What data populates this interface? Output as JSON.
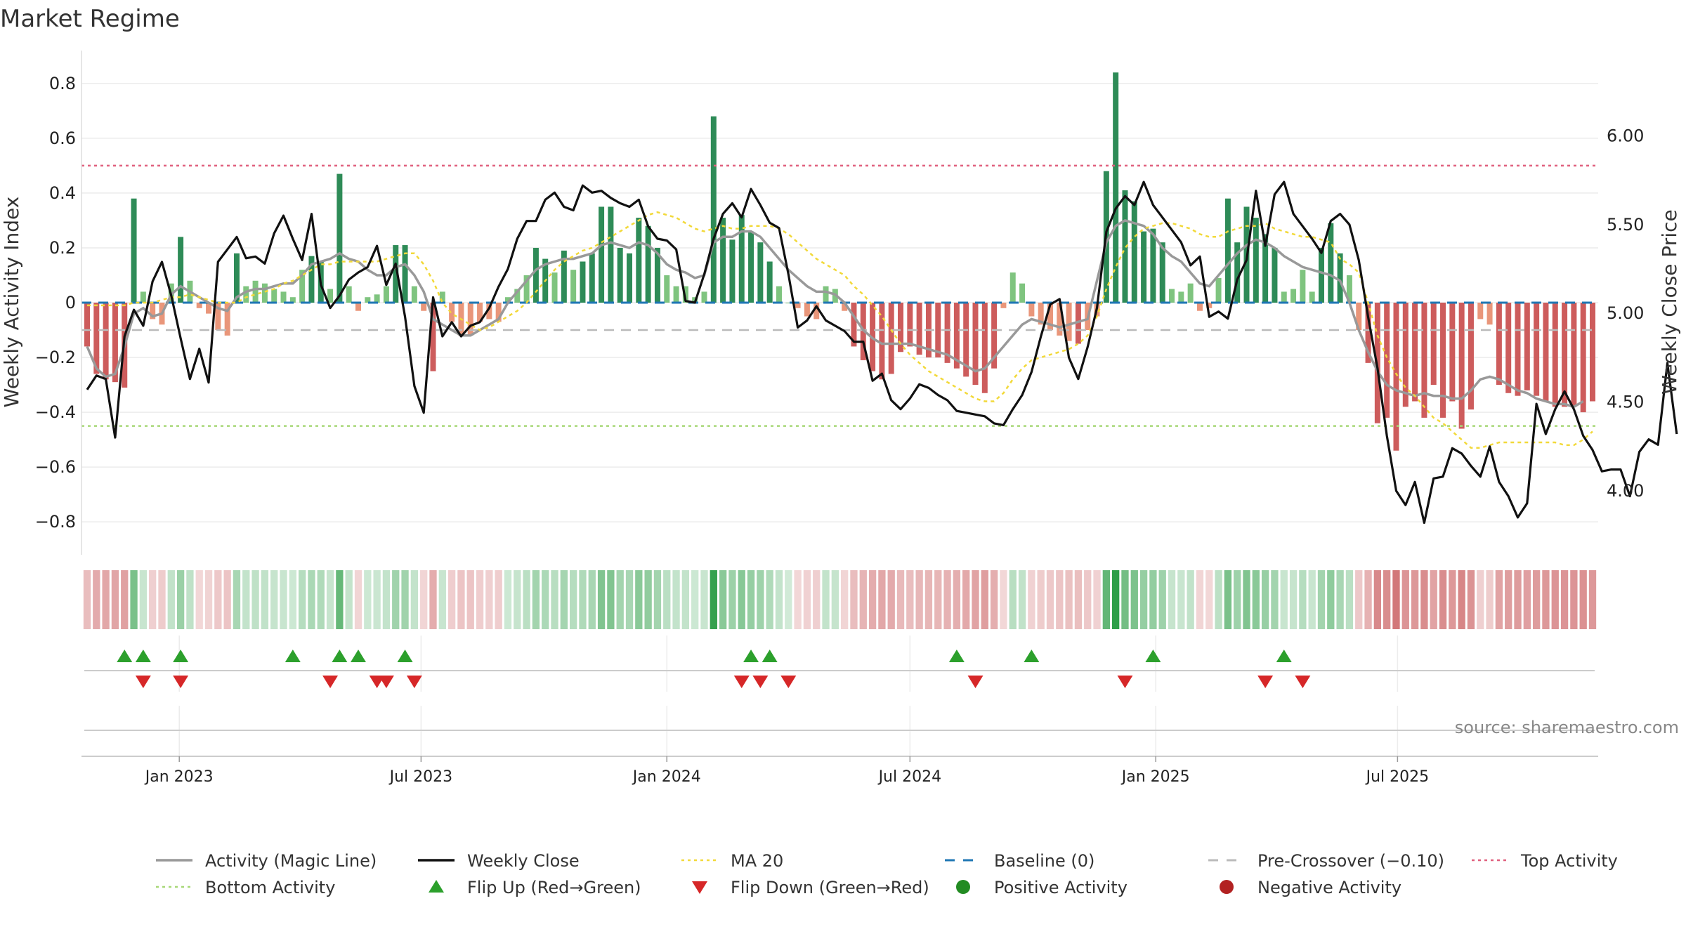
{
  "title": "Market Regime",
  "source": "source: sharemaestro.com",
  "chart_data": {
    "type": "bar",
    "x_start": "2022-10-24",
    "x_step_days": 7,
    "x_tick_labels": [
      "Jan 2023",
      "Jul 2023",
      "Jan 2024",
      "Jul 2024",
      "Jan 2025",
      "Jul 2025"
    ],
    "x_tick_dates": [
      "2023-01-01",
      "2023-07-01",
      "2024-01-01",
      "2024-07-01",
      "2025-01-01",
      "2025-07-01"
    ],
    "left_axis": {
      "label": "Weekly Activity Index",
      "ylim": [
        -0.92,
        0.92
      ],
      "ticks": [
        0.8,
        0.6,
        0.4,
        0.2,
        0,
        -0.2,
        -0.4,
        -0.6,
        -0.8
      ],
      "tick_labels": [
        "0.8",
        "0.6",
        "0.4",
        "0.2",
        "0",
        "−0.2",
        "−0.4",
        "−0.6",
        "−0.8"
      ]
    },
    "right_axis": {
      "label": "Weekly Close Price",
      "ylim": [
        3.64,
        6.48
      ],
      "ticks": [
        6.0,
        5.5,
        5.0,
        4.5,
        4.0
      ],
      "tick_labels": [
        "6.00",
        "5.50",
        "5.00",
        "4.50",
        "4.00"
      ]
    },
    "activity": [
      -0.16,
      -0.26,
      -0.28,
      -0.29,
      -0.31,
      0.38,
      0.04,
      -0.06,
      -0.08,
      0.07,
      0.24,
      0.08,
      -0.02,
      -0.04,
      -0.1,
      -0.12,
      0.18,
      0.06,
      0.08,
      0.07,
      0.05,
      0.04,
      0.02,
      0.12,
      0.17,
      0.15,
      0.05,
      0.47,
      0.06,
      -0.03,
      0.02,
      0.03,
      0.06,
      0.21,
      0.21,
      0.06,
      -0.03,
      -0.25,
      0.04,
      -0.07,
      -0.12,
      -0.12,
      -0.07,
      -0.06,
      -0.07,
      0.02,
      0.05,
      0.1,
      0.2,
      0.16,
      0.11,
      0.19,
      0.12,
      0.15,
      0.18,
      0.35,
      0.35,
      0.2,
      0.18,
      0.31,
      0.28,
      0.2,
      0.1,
      0.06,
      0.06,
      0.02,
      0.04,
      0.68,
      0.31,
      0.23,
      0.32,
      0.26,
      0.22,
      0.15,
      0.06,
      0.0,
      -0.02,
      -0.05,
      -0.06,
      0.06,
      0.05,
      -0.03,
      -0.16,
      -0.21,
      -0.25,
      -0.28,
      -0.26,
      -0.18,
      -0.16,
      -0.19,
      -0.2,
      -0.2,
      -0.22,
      -0.24,
      -0.27,
      -0.3,
      -0.33,
      -0.24,
      -0.02,
      0.11,
      0.07,
      -0.05,
      -0.08,
      -0.1,
      -0.12,
      -0.14,
      -0.15,
      -0.1,
      -0.05,
      0.48,
      0.84,
      0.41,
      0.37,
      0.26,
      0.27,
      0.22,
      0.05,
      0.04,
      0.07,
      -0.03,
      -0.02,
      0.09,
      0.38,
      0.22,
      0.35,
      0.31,
      0.25,
      0.2,
      0.04,
      0.05,
      0.12,
      0.04,
      0.2,
      0.29,
      0.18,
      0.1,
      -0.1,
      -0.22,
      -0.44,
      -0.42,
      -0.54,
      -0.38,
      -0.36,
      -0.42,
      -0.3,
      -0.42,
      -0.36,
      -0.46,
      -0.39,
      -0.06,
      -0.08,
      -0.3,
      -0.33,
      -0.34,
      -0.32,
      -0.34,
      -0.36,
      -0.38,
      -0.38,
      -0.38,
      -0.4,
      -0.36
    ],
    "magic_line": [
      -0.16,
      -0.24,
      -0.27,
      -0.26,
      -0.16,
      -0.04,
      -0.02,
      -0.05,
      -0.04,
      0.03,
      0.06,
      0.04,
      0.02,
      0.0,
      -0.02,
      -0.03,
      0.02,
      0.04,
      0.05,
      0.05,
      0.06,
      0.07,
      0.07,
      0.1,
      0.14,
      0.15,
      0.16,
      0.18,
      0.16,
      0.15,
      0.12,
      0.1,
      0.1,
      0.13,
      0.14,
      0.1,
      0.04,
      -0.06,
      -0.08,
      -0.1,
      -0.12,
      -0.12,
      -0.1,
      -0.08,
      -0.06,
      0.0,
      0.04,
      0.08,
      0.12,
      0.14,
      0.15,
      0.16,
      0.16,
      0.17,
      0.18,
      0.21,
      0.22,
      0.21,
      0.2,
      0.22,
      0.21,
      0.18,
      0.14,
      0.12,
      0.11,
      0.09,
      0.1,
      0.22,
      0.24,
      0.24,
      0.26,
      0.26,
      0.24,
      0.2,
      0.16,
      0.12,
      0.09,
      0.06,
      0.04,
      0.04,
      0.03,
      0.0,
      -0.05,
      -0.1,
      -0.13,
      -0.15,
      -0.15,
      -0.15,
      -0.15,
      -0.16,
      -0.17,
      -0.18,
      -0.19,
      -0.21,
      -0.23,
      -0.25,
      -0.24,
      -0.2,
      -0.16,
      -0.12,
      -0.08,
      -0.06,
      -0.07,
      -0.08,
      -0.09,
      -0.08,
      -0.07,
      -0.06,
      0.08,
      0.22,
      0.28,
      0.3,
      0.29,
      0.28,
      0.25,
      0.2,
      0.17,
      0.15,
      0.11,
      0.07,
      0.06,
      0.1,
      0.14,
      0.18,
      0.21,
      0.23,
      0.22,
      0.2,
      0.17,
      0.15,
      0.13,
      0.12,
      0.11,
      0.1,
      0.08,
      0.0,
      -0.1,
      -0.18,
      -0.25,
      -0.3,
      -0.32,
      -0.33,
      -0.34,
      -0.33,
      -0.34,
      -0.34,
      -0.35,
      -0.35,
      -0.32,
      -0.28,
      -0.27,
      -0.28,
      -0.3,
      -0.32,
      -0.33,
      -0.35,
      -0.36,
      -0.37,
      -0.37,
      -0.38,
      -0.36
    ],
    "ma20": [
      -0.01,
      -0.01,
      -0.01,
      -0.01,
      -0.01,
      0.0,
      0.0,
      0.0,
      0.01,
      0.02,
      0.02,
      0.03,
      0.02,
      0.01,
      0.0,
      0.0,
      0.0,
      0.02,
      0.03,
      0.04,
      0.05,
      0.07,
      0.08,
      0.1,
      0.12,
      0.14,
      0.14,
      0.15,
      0.15,
      0.15,
      0.15,
      0.15,
      0.16,
      0.17,
      0.18,
      0.18,
      0.14,
      0.08,
      0.0,
      -0.04,
      -0.06,
      -0.08,
      -0.1,
      -0.09,
      -0.07,
      -0.05,
      -0.03,
      0.0,
      0.04,
      0.08,
      0.12,
      0.15,
      0.17,
      0.19,
      0.2,
      0.22,
      0.24,
      0.26,
      0.28,
      0.3,
      0.32,
      0.33,
      0.32,
      0.31,
      0.29,
      0.27,
      0.26,
      0.27,
      0.28,
      0.27,
      0.27,
      0.28,
      0.28,
      0.28,
      0.27,
      0.25,
      0.22,
      0.19,
      0.16,
      0.14,
      0.12,
      0.1,
      0.06,
      0.03,
      -0.01,
      -0.05,
      -0.1,
      -0.15,
      -0.19,
      -0.22,
      -0.25,
      -0.27,
      -0.29,
      -0.31,
      -0.33,
      -0.35,
      -0.36,
      -0.36,
      -0.33,
      -0.28,
      -0.24,
      -0.21,
      -0.2,
      -0.19,
      -0.18,
      -0.17,
      -0.15,
      -0.12,
      -0.05,
      0.05,
      0.13,
      0.2,
      0.24,
      0.27,
      0.28,
      0.29,
      0.29,
      0.28,
      0.27,
      0.25,
      0.24,
      0.24,
      0.26,
      0.27,
      0.28,
      0.28,
      0.29,
      0.27,
      0.26,
      0.25,
      0.24,
      0.24,
      0.23,
      0.22,
      0.16,
      0.14,
      0.11,
      0.0,
      -0.12,
      -0.2,
      -0.26,
      -0.31,
      -0.34,
      -0.38,
      -0.42,
      -0.44,
      -0.47,
      -0.5,
      -0.53,
      -0.53,
      -0.52,
      -0.51,
      -0.51,
      -0.51,
      -0.51,
      -0.51,
      -0.51,
      -0.51,
      -0.52,
      -0.52,
      -0.5,
      -0.47
    ],
    "weekly_close": [
      4.57,
      4.65,
      4.63,
      4.3,
      4.87,
      5.02,
      4.93,
      5.18,
      5.29,
      5.1,
      4.86,
      4.63,
      4.8,
      4.61,
      5.29,
      5.36,
      5.43,
      5.31,
      5.32,
      5.28,
      5.45,
      5.55,
      5.42,
      5.3,
      5.56,
      5.16,
      5.03,
      5.1,
      5.19,
      5.23,
      5.26,
      5.38,
      5.16,
      5.28,
      4.98,
      4.59,
      4.44,
      5.09,
      4.87,
      4.95,
      4.87,
      4.93,
      4.95,
      5.03,
      5.15,
      5.25,
      5.42,
      5.52,
      5.52,
      5.64,
      5.68,
      5.6,
      5.58,
      5.72,
      5.68,
      5.69,
      5.65,
      5.62,
      5.6,
      5.64,
      5.49,
      5.42,
      5.41,
      5.36,
      5.07,
      5.06,
      5.22,
      5.42,
      5.56,
      5.62,
      5.54,
      5.7,
      5.61,
      5.51,
      5.48,
      5.22,
      4.92,
      4.96,
      5.04,
      4.96,
      4.93,
      4.9,
      4.84,
      4.84,
      4.62,
      4.66,
      4.51,
      4.46,
      4.52,
      4.6,
      4.58,
      4.54,
      4.51,
      4.45,
      4.44,
      4.43,
      4.42,
      4.38,
      4.37,
      4.46,
      4.54,
      4.67,
      4.87,
      5.05,
      5.08,
      4.75,
      4.63,
      4.81,
      5.03,
      5.46,
      5.59,
      5.66,
      5.61,
      5.74,
      5.61,
      5.54,
      5.47,
      5.4,
      5.27,
      5.32,
      4.98,
      5.01,
      4.97,
      5.19,
      5.3,
      5.69,
      5.38,
      5.67,
      5.74,
      5.56,
      5.49,
      5.42,
      5.34,
      5.52,
      5.56,
      5.5,
      5.3,
      4.98,
      4.69,
      4.31,
      4.0,
      3.92,
      4.05,
      3.82,
      4.07,
      4.08,
      4.24,
      4.21,
      4.14,
      4.08,
      4.25,
      4.05,
      3.97,
      3.85,
      3.93,
      4.49,
      4.32,
      4.46,
      4.56,
      4.46,
      4.31,
      4.23,
      4.11,
      4.12,
      4.12,
      3.97,
      4.22,
      4.29,
      4.26,
      4.72,
      4.32
    ],
    "reference_lines": {
      "baseline": 0,
      "pre_crossover": -0.1,
      "top_activity": 0.5,
      "bottom_activity": -0.45
    },
    "flip_up_weeks": [
      4,
      6,
      10,
      22,
      27,
      29,
      34,
      71,
      73,
      93,
      101,
      114,
      128
    ],
    "flip_down_weeks": [
      6,
      10,
      26,
      31,
      32,
      35,
      70,
      72,
      75,
      95,
      111,
      126,
      130
    ],
    "legend_position": "bottom",
    "colors": {
      "strong_green": "#2e8b57",
      "light_green": "#7fc47f",
      "strong_red": "#cd5c5c",
      "light_red": "#e9967a",
      "magic_line": "#999999",
      "weekly_close": "#111111",
      "ma20": "#f2d93a",
      "baseline": "#1f77b4",
      "pre_crossover": "#bbbbbb",
      "top_activity": "#e0607e",
      "bottom_activity": "#a8d878",
      "flip_up": "#2ca02c",
      "flip_down": "#d62728",
      "positive_dot": "#228b22",
      "negative_dot": "#b22222"
    },
    "legend": [
      {
        "label": "Activity (Magic Line)",
        "style": "line",
        "color": "#999999"
      },
      {
        "label": "Weekly Close",
        "style": "line",
        "color": "#111111"
      },
      {
        "label": "MA 20",
        "style": "dotted",
        "color": "#f2d93a"
      },
      {
        "label": "Baseline (0)",
        "style": "dashed",
        "color": "#1f77b4"
      },
      {
        "label": "Pre-Crossover (−0.10)",
        "style": "dashed",
        "color": "#bbbbbb"
      },
      {
        "label": "Top Activity",
        "style": "dotted",
        "color": "#e0607e"
      },
      {
        "label": "Bottom Activity",
        "style": "dotted",
        "color": "#a8d878"
      },
      {
        "label": "Flip Up (Red→Green)",
        "style": "tri-up",
        "color": "#2ca02c"
      },
      {
        "label": "Flip Down (Green→Red)",
        "style": "tri-down",
        "color": "#d62728"
      },
      {
        "label": "Positive Activity",
        "style": "dot",
        "color": "#228b22"
      },
      {
        "label": "Negative Activity",
        "style": "dot",
        "color": "#b22222"
      }
    ]
  }
}
